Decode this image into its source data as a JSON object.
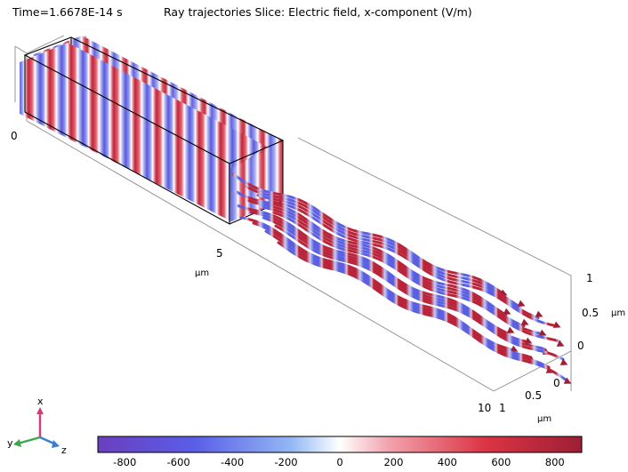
{
  "header": {
    "time_label": "Time=1.6678E-14 s",
    "plot_title": "Ray trajectories  Slice: Electric field, x-component (V/m)"
  },
  "axes": {
    "length_ticks": [
      "0",
      "5",
      "10"
    ],
    "length_unit": "µm",
    "height_ticks": [
      "1",
      "0.5",
      "0"
    ],
    "height_unit": "µm",
    "depth_ticks": [
      "0",
      "0.5",
      "1"
    ],
    "depth_unit": "µm"
  },
  "triad": {
    "x": "x",
    "y": "y",
    "z": "z"
  },
  "colorbar": {
    "ticks": [
      "-800",
      "-600",
      "-400",
      "-200",
      "0",
      "200",
      "400",
      "600",
      "800"
    ],
    "min": -900,
    "max": 900,
    "colors": [
      "#6a3fbf",
      "#5a5ee8",
      "#93b8f4",
      "#ffffff",
      "#f2a3ae",
      "#dc3443",
      "#9c1f35"
    ]
  },
  "scene_colors": {
    "positive_field": "#c0243a",
    "negative_field": "#5c5ae0",
    "box_edge": "#000000",
    "bounding_edge": "#8c8c8c"
  }
}
